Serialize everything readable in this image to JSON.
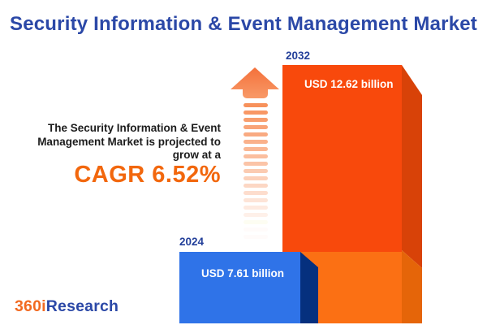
{
  "chart_data": {
    "type": "bar",
    "title": "Security Information & Event Management Market",
    "orientation": "vertical",
    "categories": [
      "2024",
      "2032"
    ],
    "values": [
      7.61,
      12.62
    ],
    "unit": "USD billion",
    "value_labels": [
      "USD 7.61 billion",
      "USD 12.62 billion"
    ],
    "cagr_percent": 6.52,
    "legend": "none",
    "grid": false,
    "bar_style": "3d-extruded",
    "colors": {
      "bar_2024_front": "#2F73E8",
      "bar_2024_side": "#05307E",
      "bar_2032_front_top": "#F8490C",
      "bar_2032_front_bottom": "#FB7014",
      "bar_2032_side_top": "#D84208",
      "bar_2032_side_bottom": "#E56509",
      "year_label": "#24409A",
      "value_label": "#FFFFFF"
    }
  },
  "header": {
    "title": "Security Information & Event Management Market",
    "title_color": "#2B48A7"
  },
  "tagline": {
    "lines": [
      "The Security Information & Event",
      "Management Market is projected to",
      "grow at a"
    ],
    "cagr_label": "CAGR 6.52%",
    "cagr_color": "#F2670D",
    "text_color": "#1C1C1C"
  },
  "icons": {
    "growth_arrow": "striped-upward-arrow",
    "growth_arrow_color": "#F57E45"
  },
  "logo": {
    "prefix": "360i",
    "suffix": "Research",
    "prefix_color": "#F26A21",
    "suffix_color": "#2B48A7"
  }
}
